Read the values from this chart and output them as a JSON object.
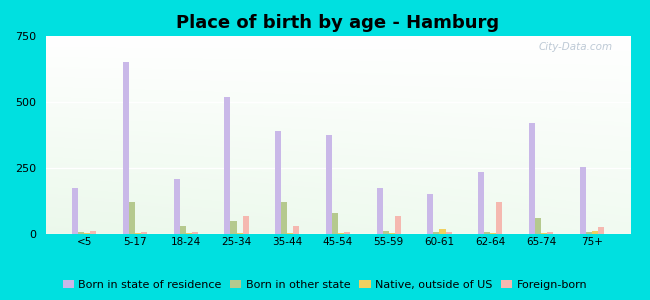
{
  "title": "Place of birth by age - Hamburg",
  "categories": [
    "<5",
    "5-17",
    "18-24",
    "25-34",
    "35-44",
    "45-54",
    "55-59",
    "60-61",
    "62-64",
    "65-74",
    "75+"
  ],
  "series": {
    "Born in state of residence": [
      175,
      650,
      210,
      520,
      390,
      375,
      175,
      150,
      235,
      420,
      255
    ],
    "Born in other state": [
      8,
      120,
      30,
      50,
      120,
      80,
      10,
      8,
      8,
      60,
      8
    ],
    "Native, outside of US": [
      4,
      4,
      4,
      4,
      4,
      4,
      4,
      20,
      4,
      4,
      12
    ],
    "Foreign-born": [
      12,
      8,
      8,
      70,
      30,
      8,
      70,
      8,
      120,
      8,
      28
    ]
  },
  "colors": {
    "Born in state of residence": "#c9b8e8",
    "Born in other state": "#b5c98e",
    "Native, outside of US": "#f0d060",
    "Foreign-born": "#f5b8b0"
  },
  "ylim": [
    0,
    750
  ],
  "yticks": [
    0,
    250,
    500,
    750
  ],
  "outer_bg": "#00e0e0",
  "bar_width": 0.12,
  "title_fontsize": 13,
  "legend_fontsize": 8.0,
  "watermark": "City-Data.com"
}
